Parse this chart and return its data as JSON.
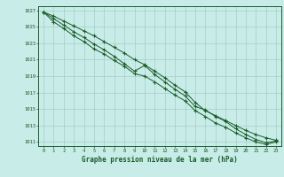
{
  "bg_color": "#c8ece8",
  "plot_bg_color": "#c8ece8",
  "grid_color": "#a8ccc8",
  "line_color": "#1a5c2a",
  "xlabel": "Graphe pression niveau de la mer (hPa)",
  "ylim": [
    1010.5,
    1027.5
  ],
  "xlim": [
    -0.5,
    23.5
  ],
  "yticks": [
    1011,
    1013,
    1015,
    1017,
    1019,
    1021,
    1023,
    1025,
    1027
  ],
  "xticks": [
    0,
    1,
    2,
    3,
    4,
    5,
    6,
    7,
    8,
    9,
    10,
    11,
    12,
    13,
    14,
    15,
    16,
    17,
    18,
    19,
    20,
    21,
    22,
    23
  ],
  "line1": [
    1026.8,
    1026.3,
    1025.7,
    1025.1,
    1024.5,
    1023.9,
    1023.2,
    1022.5,
    1021.8,
    1021.0,
    1020.4,
    1019.6,
    1018.8,
    1017.9,
    1017.1,
    1015.8,
    1014.8,
    1014.2,
    1013.6,
    1013.0,
    1012.4,
    1011.9,
    1011.5,
    1011.2
  ],
  "line2": [
    1026.8,
    1026.0,
    1025.2,
    1024.4,
    1023.7,
    1022.9,
    1022.2,
    1021.4,
    1020.5,
    1019.6,
    1020.3,
    1019.2,
    1018.3,
    1017.4,
    1016.6,
    1015.3,
    1014.9,
    1014.1,
    1013.5,
    1012.6,
    1011.9,
    1011.3,
    1010.9,
    1011.1
  ],
  "line3": [
    1026.8,
    1025.6,
    1024.8,
    1023.9,
    1023.2,
    1022.3,
    1021.7,
    1020.9,
    1020.2,
    1019.3,
    1019.0,
    1018.3,
    1017.5,
    1016.7,
    1016.0,
    1014.8,
    1014.1,
    1013.3,
    1012.8,
    1012.1,
    1011.5,
    1011.0,
    1010.7,
    1011.0
  ]
}
